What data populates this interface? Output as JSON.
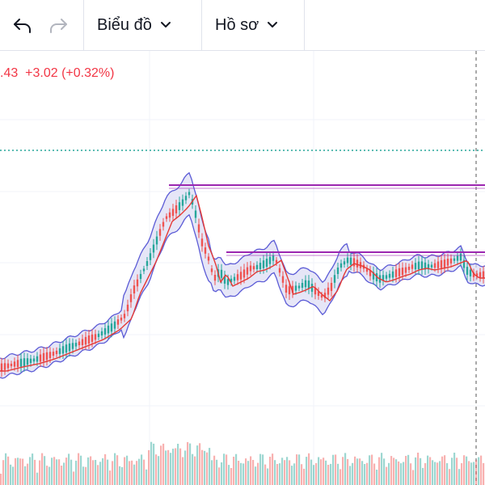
{
  "toolbar": {
    "undo_icon": "undo-arrow-icon",
    "redo_icon": "redo-arrow-icon",
    "chart_menu_label": "Biểu đồ",
    "profile_menu_label": "Hồ sơ"
  },
  "legend": {
    "price_partial": ".43",
    "change": "+3.02",
    "change_pct": "(+0.32%)",
    "color": "#f23645"
  },
  "colors": {
    "band": "#5b5bd6",
    "band_fill": "#dcdcf3",
    "ma": "#e53935",
    "up": "#26a69a",
    "down": "#ef5350",
    "level": "#9c27b0",
    "last_price_line": "#26a69a"
  }
}
